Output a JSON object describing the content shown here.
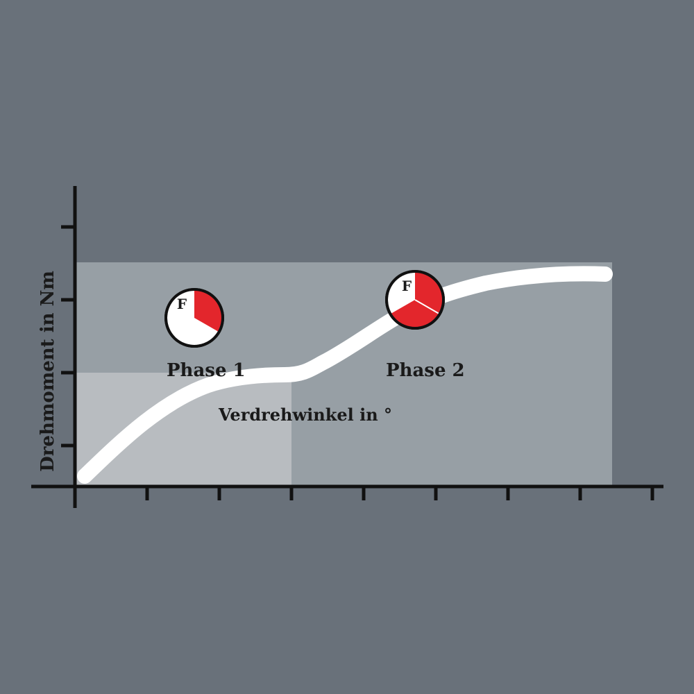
{
  "y_axis_label": "Drehmoment in Nm",
  "x_axis_label": "Verdrehwinkel in °",
  "phases": [
    {
      "label": "Phase 1",
      "indicator_letter": "F",
      "red_fraction": 0.333
    },
    {
      "label": "Phase 2",
      "indicator_letter": "F",
      "red_fraction": 0.667
    }
  ],
  "colors": {
    "background": "#69717a",
    "phase_region": "#979fa5",
    "phase1_region": "#b8bcc0",
    "curve": "#ffffff",
    "indicator_red": "#e3262c",
    "axis": "#111111"
  }
}
